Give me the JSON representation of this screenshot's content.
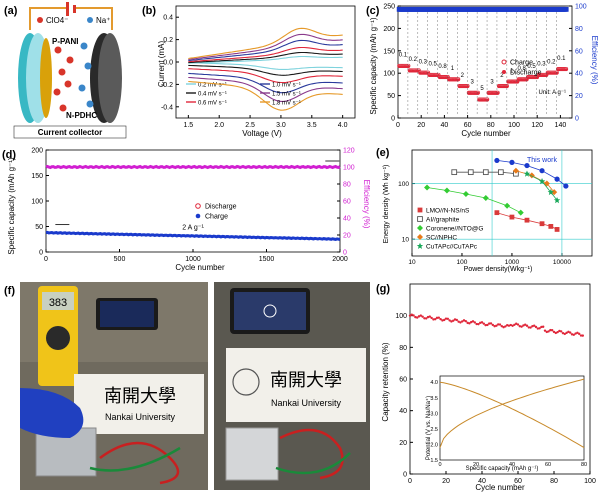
{
  "panel_labels": {
    "a": "(a)",
    "b": "(b)",
    "c": "(c)",
    "d": "(d)",
    "e": "(e)",
    "f": "(f)",
    "g": "(g)"
  },
  "schematic": {
    "clo4": "ClO4⁻",
    "na": "Na⁺",
    "anode": "P-PANI",
    "cathode": "N-PDHC",
    "collector": "Current collector",
    "colors": {
      "frame": "#e39a2e",
      "collector": "#38b8c4",
      "anode": "#d9a10a",
      "cathode": "#3c3c3c",
      "clo4": "#d8352a",
      "na": "#3a86c9"
    }
  },
  "photos": {
    "meter_display": "383",
    "sign_cn": "南開大學",
    "sign_en": "Nankai University"
  },
  "chart_data": [
    {
      "id": "b",
      "type": "line",
      "xlabel": "Voltage (V)",
      "ylabel": "Current (mA)",
      "xlim": [
        1.3,
        4.2
      ],
      "ylim": [
        -0.5,
        0.5
      ],
      "xticks": [
        1.5,
        2.0,
        2.5,
        3.0,
        3.5,
        4.0
      ],
      "yticks": [
        -0.4,
        -0.2,
        0.0,
        0.2,
        0.4
      ],
      "series": [
        {
          "name": "0.2 mV s⁻¹",
          "color": "#7fd3dd",
          "amp": 0.06
        },
        {
          "name": "0.4 mV s⁻¹",
          "color": "#1a1a1a",
          "amp": 0.1
        },
        {
          "name": "0.6 mV s⁻¹",
          "color": "#e0273a",
          "amp": 0.15
        },
        {
          "name": "1.0 mV s⁻¹",
          "color": "#2a3a9c",
          "amp": 0.22
        },
        {
          "name": "1.5 mV s⁻¹",
          "color": "#8a3a8c",
          "amp": 0.28
        },
        {
          "name": "1.8 mV s⁻¹",
          "color": "#e69a2a",
          "amp": 0.34
        }
      ]
    },
    {
      "id": "c",
      "type": "scatter",
      "xlabel": "Cycle number",
      "ylabel": "Specific capacity (mAh g⁻¹)",
      "y2label": "Efficiency (%)",
      "xlim": [
        0,
        150
      ],
      "ylim": [
        0,
        250
      ],
      "y2lim": [
        0,
        100
      ],
      "xticks": [
        0,
        20,
        40,
        60,
        80,
        100,
        120,
        140
      ],
      "yticks": [
        0,
        50,
        100,
        150,
        200,
        250
      ],
      "y2ticks": [
        0,
        20,
        40,
        60,
        80,
        100
      ],
      "rates": [
        "0.1",
        "0.2",
        "0.3",
        "0.5",
        "0.8",
        "1",
        "2",
        "3",
        "5",
        "3",
        "2",
        "1",
        "0.8",
        "0.5",
        "0.3",
        "0.2",
        "0.1"
      ],
      "rate_values": [
        115,
        105,
        100,
        95,
        90,
        85,
        70,
        55,
        40,
        55,
        70,
        80,
        85,
        90,
        95,
        100,
        108
      ],
      "unit": "Unit: A g⁻¹",
      "efficiency": 97,
      "legend": [
        "Charge",
        "Discharge"
      ]
    },
    {
      "id": "d",
      "type": "scatter",
      "xlabel": "Cycle number",
      "ylabel": "Specific capacity (mAh g⁻¹)",
      "y2label": "Efficiency (%)",
      "xlim": [
        0,
        2000
      ],
      "ylim": [
        0,
        200
      ],
      "y2lim": [
        0,
        120
      ],
      "xticks": [
        0,
        500,
        1000,
        1500,
        2000
      ],
      "yticks": [
        0,
        50,
        100,
        150,
        200
      ],
      "y2ticks": [
        0,
        20,
        40,
        60,
        80,
        100,
        120
      ],
      "capacity_start": 38,
      "capacity_end": 25,
      "efficiency": 100,
      "legend": [
        "Discharge",
        "Charge"
      ],
      "annotation": "2 A g⁻¹"
    },
    {
      "id": "e",
      "type": "scatter",
      "scale": "log",
      "xlabel": "Power density(Wkg⁻¹)",
      "ylabel": "Energy density (Wh kg⁻¹)",
      "xticks_labels": [
        "10",
        "100",
        "1000",
        "10000"
      ],
      "yticks_labels": [
        "10",
        "100"
      ],
      "annotation": "This work",
      "series": [
        {
          "name": "LMO//N-NS/nS",
          "color": "#d93a3a",
          "marker": "square",
          "points": [
            [
              500,
              30
            ],
            [
              1000,
              25
            ],
            [
              2000,
              22
            ],
            [
              4000,
              19
            ],
            [
              6000,
              17
            ],
            [
              8000,
              15
            ]
          ]
        },
        {
          "name": "AI//graphite",
          "color": "#555",
          "marker": "open-square",
          "points": [
            [
              70,
              160
            ],
            [
              150,
              160
            ],
            [
              300,
              160
            ],
            [
              600,
              160
            ],
            [
              1200,
              150
            ]
          ]
        },
        {
          "name": "Coronene//NTO@G",
          "color": "#33cc33",
          "marker": "diamond",
          "points": [
            [
              20,
              85
            ],
            [
              50,
              75
            ],
            [
              120,
              65
            ],
            [
              300,
              55
            ],
            [
              800,
              40
            ],
            [
              1500,
              30
            ]
          ]
        },
        {
          "name": "SC//NPHC",
          "color": "#e67a1a",
          "marker": "diamond",
          "points": [
            [
              1200,
              170
            ],
            [
              2500,
              140
            ],
            [
              5000,
              100
            ],
            [
              7000,
              70
            ]
          ]
        },
        {
          "name": "CuTAPc//CuTAPc",
          "color": "#1aa85a",
          "marker": "star",
          "points": [
            [
              2000,
              150
            ],
            [
              4000,
              110
            ],
            [
              6000,
              70
            ],
            [
              8000,
              50
            ]
          ]
        },
        {
          "name": "This work",
          "color": "#1a3acc",
          "marker": "circle",
          "points": [
            [
              500,
              260
            ],
            [
              1000,
              240
            ],
            [
              2000,
              210
            ],
            [
              4000,
              170
            ],
            [
              8000,
              120
            ],
            [
              12000,
              90
            ]
          ]
        }
      ]
    },
    {
      "id": "g",
      "type": "line",
      "xlabel": "Cycle number",
      "ylabel": "Capacity retention (%)",
      "xlim": [
        0,
        100
      ],
      "ylim": [
        0,
        120
      ],
      "xticks": [
        0,
        20,
        40,
        60,
        80,
        100
      ],
      "yticks": [
        0,
        20,
        40,
        60,
        80,
        100
      ],
      "start": 100,
      "end": 88
    },
    {
      "id": "g-inset",
      "type": "line",
      "xlabel": "Specific capacity (mAh g⁻¹)",
      "ylabel": "Potential (V vs. Na/Na⁺)",
      "xlim": [
        0,
        80
      ],
      "ylim": [
        1.5,
        4.2
      ],
      "xticks": [
        0,
        20,
        40,
        60,
        80
      ],
      "yticks": [
        "1.5",
        "2.0",
        "2.5",
        "3.0",
        "3.5",
        "4.0"
      ]
    }
  ]
}
